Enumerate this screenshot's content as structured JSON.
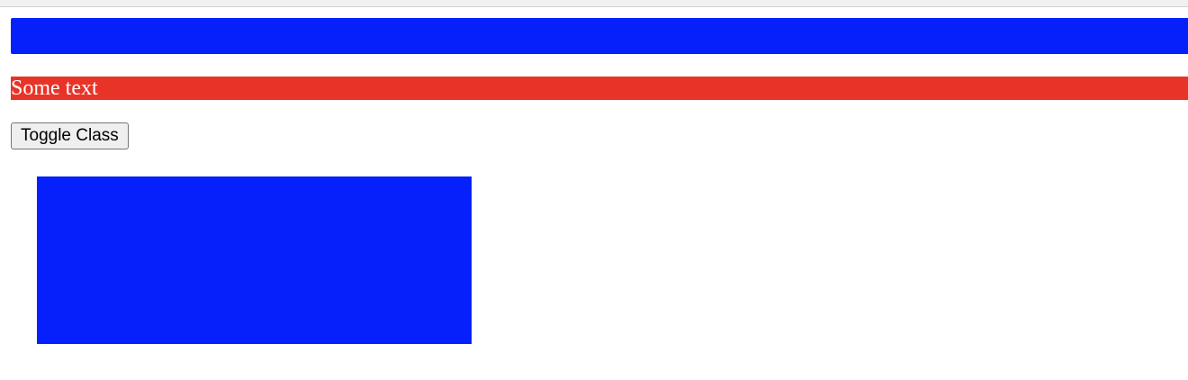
{
  "paragraph": {
    "text": "Some text"
  },
  "button": {
    "label": "Toggle Class"
  },
  "colors": {
    "primary_blue": "#0520fa",
    "highlight_red": "#e83428",
    "paragraph_text": "#ffffff",
    "button_background": "#efefef"
  }
}
